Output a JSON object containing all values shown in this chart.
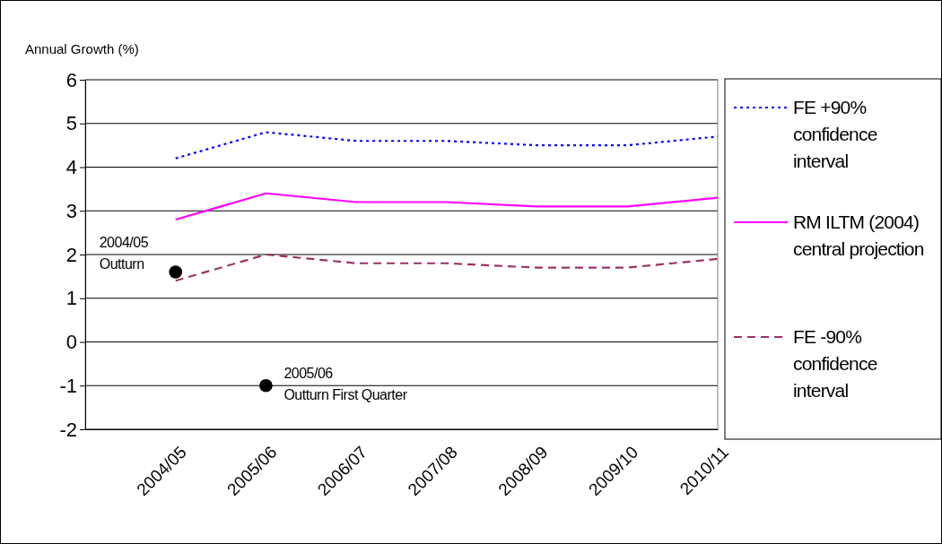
{
  "chart_data": {
    "type": "line",
    "ylabel": "Annual Growth (%)",
    "categories": [
      "2004/05",
      "2005/06",
      "2006/07",
      "2007/08",
      "2008/09",
      "2009/10",
      "2010/11"
    ],
    "series": [
      {
        "name": "FE +90% confidence interval",
        "color": "#0000ff",
        "line_style": "dotted",
        "values": [
          4.2,
          4.8,
          4.6,
          4.6,
          4.5,
          4.5,
          4.7
        ]
      },
      {
        "name": "RM ILTM (2004) central projection",
        "color": "#ff00ff",
        "line_style": "solid",
        "values": [
          2.8,
          3.4,
          3.2,
          3.2,
          3.1,
          3.1,
          3.3
        ]
      },
      {
        "name": "FE -90% confidence interval",
        "color": "#993366",
        "line_style": "dashed",
        "values": [
          1.4,
          2.0,
          1.8,
          1.8,
          1.7,
          1.7,
          1.9
        ]
      },
      {
        "type": "scatter",
        "color": "#000000",
        "marker": "circle",
        "x": [
          "2004/05",
          "2005/06"
        ],
        "values": [
          1.6,
          -1
        ]
      }
    ],
    "ylim": [
      -2,
      6
    ],
    "yticks": [
      -2,
      -1,
      0,
      1,
      2,
      3,
      4,
      5,
      6
    ],
    "grid": "y",
    "legend": "right",
    "annotations": [
      {
        "text": "2004/05 Outturn",
        "x": "2004/05",
        "y": 1.6
      },
      {
        "text": "2005/06 Outturn First Quarter",
        "x": "2005/06",
        "y": -1
      }
    ]
  }
}
